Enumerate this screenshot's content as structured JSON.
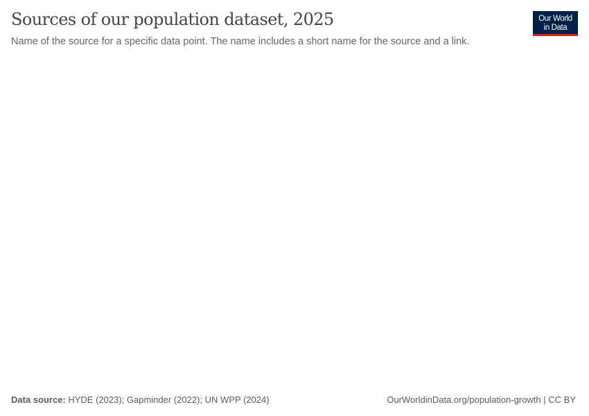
{
  "header": {
    "title": "Sources of our population dataset, 2025",
    "subtitle": "Name of the source for a specific data point. The name includes a short name for the source and a link."
  },
  "logo": {
    "line1": "Our World",
    "line2": "in Data",
    "bg_color": "#002147",
    "accent_color": "#ce261e"
  },
  "footer": {
    "source_label": "Data source:",
    "source_text": " HYDE (2023); Gapminder (2022); UN WPP (2024)",
    "link": "OurWorldinData.org/population-growth",
    "separator": " | ",
    "license": "CC BY"
  },
  "chart_data": {
    "type": "map",
    "title": "Sources of our population dataset, 2025",
    "subtitle": "Name of the source for a specific data point. The name includes a short name for the source and a link.",
    "series": []
  }
}
